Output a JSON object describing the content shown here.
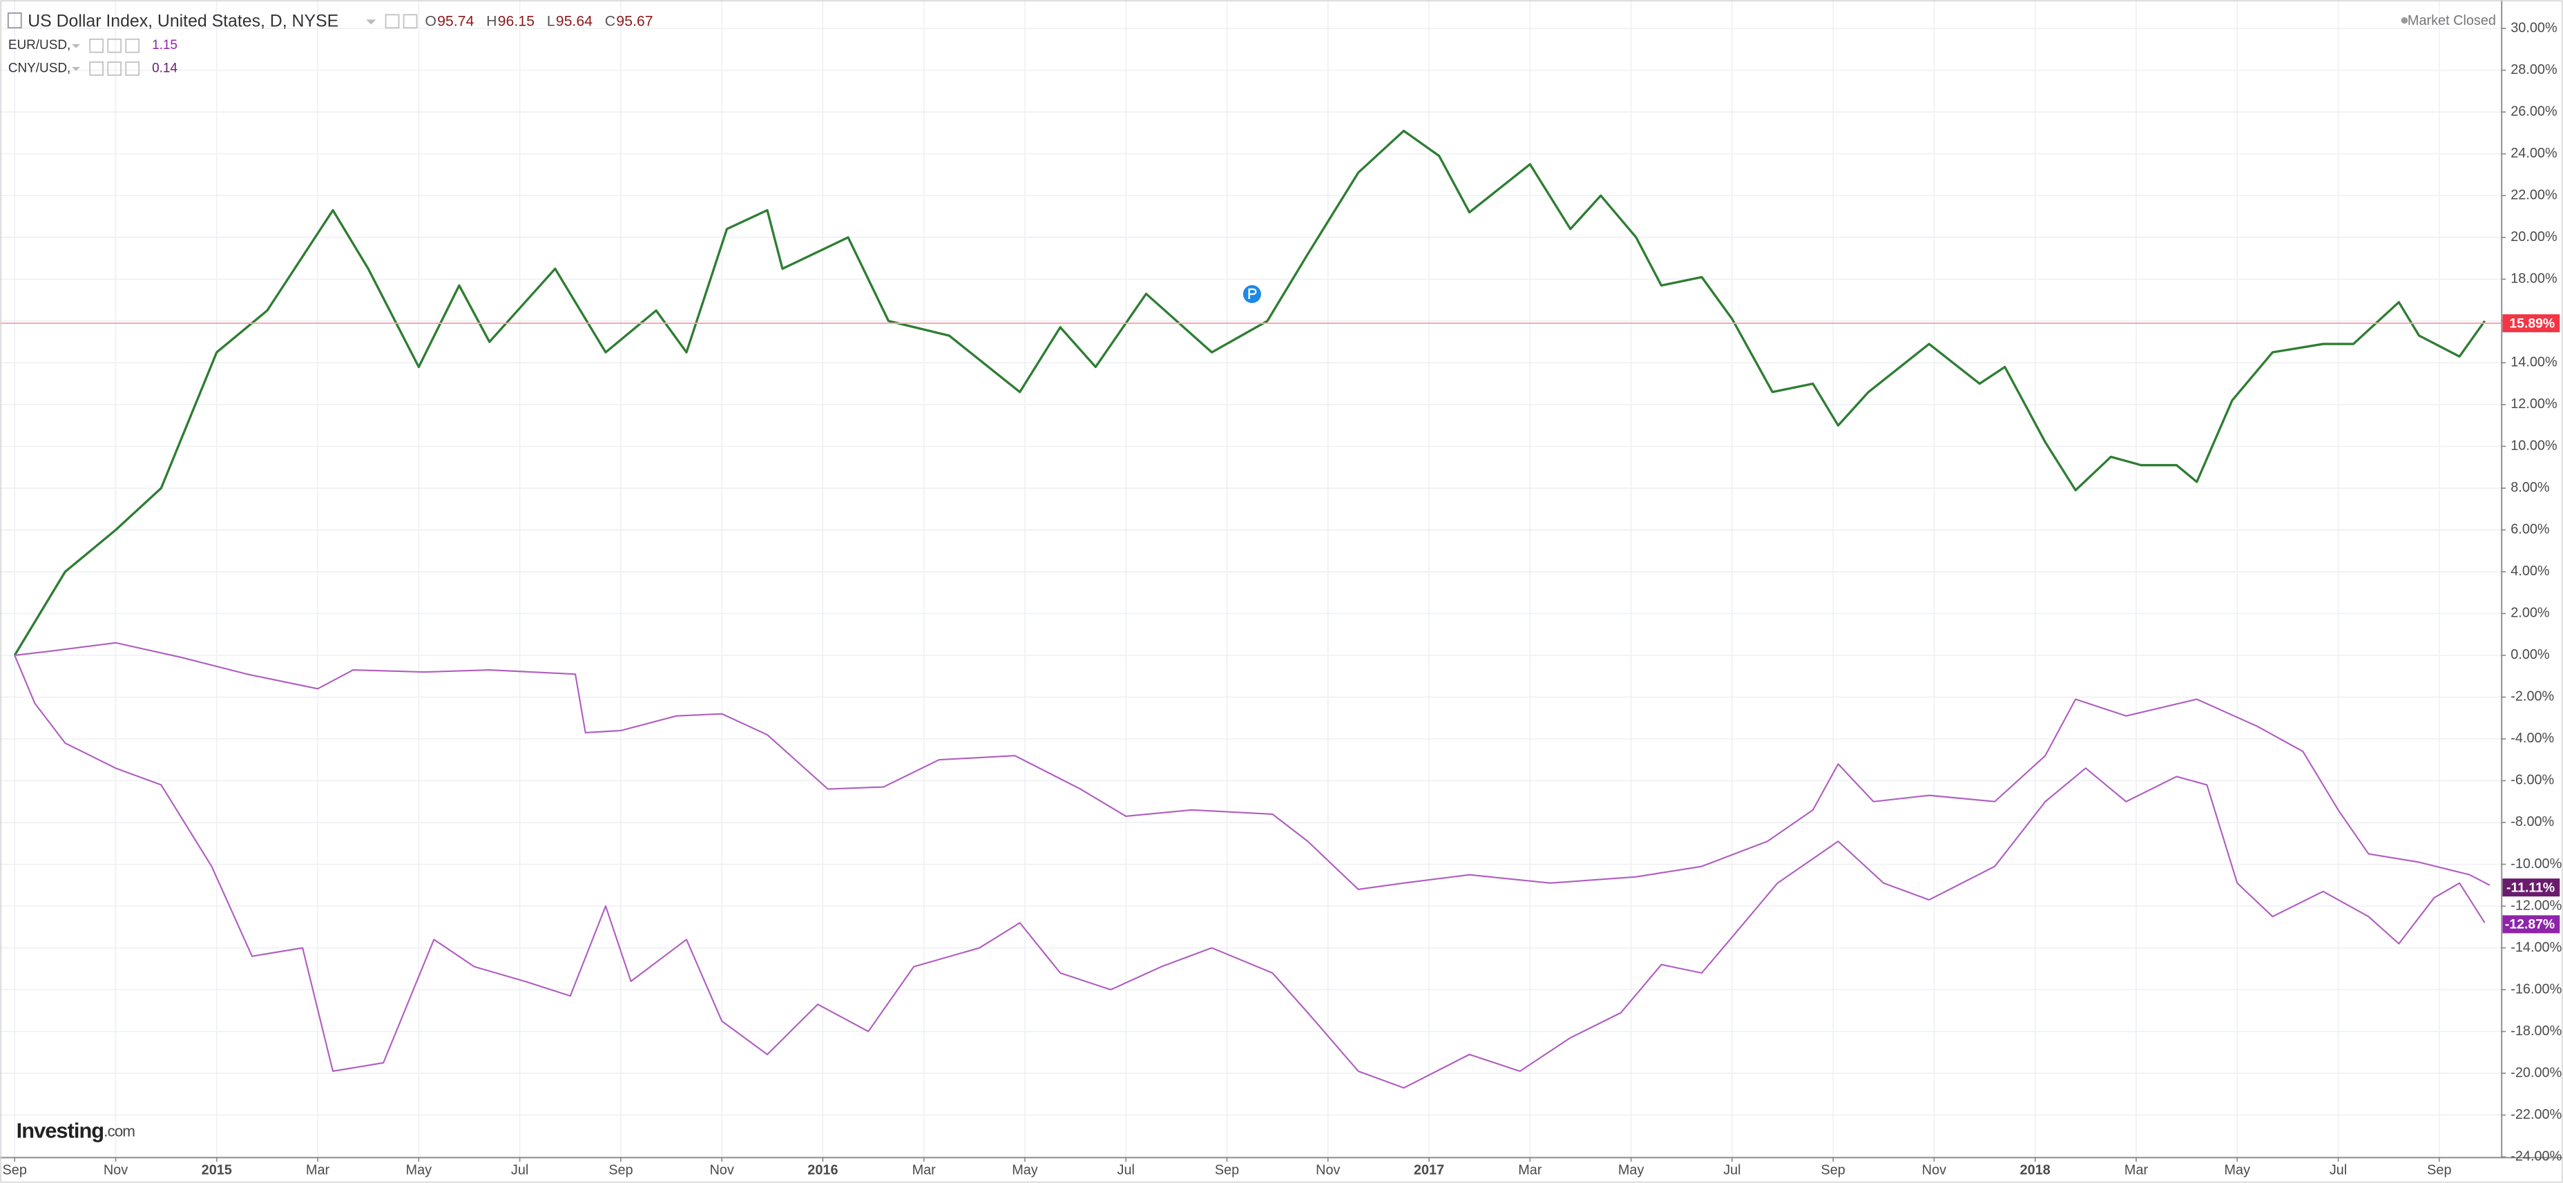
{
  "header": {
    "title": "US Dollar Index, United States, D, NYSE",
    "ohlc": [
      {
        "key": "O",
        "value": 95.74
      },
      {
        "key": "H",
        "value": 96.15
      },
      {
        "key": "L",
        "value": 95.64
      },
      {
        "key": "C",
        "value": 95.67
      }
    ],
    "status": "Market Closed"
  },
  "logo": {
    "name": "Investing",
    "suffix": ".com"
  },
  "chart_data": {
    "type": "line",
    "xlim": [
      -0.29,
      49.22
    ],
    "xticks": [
      {
        "value": 0,
        "label": "Sep"
      },
      {
        "value": 2,
        "label": "Nov"
      },
      {
        "value": 4,
        "label": "2015"
      },
      {
        "value": 6,
        "label": "Mar"
      },
      {
        "value": 8,
        "label": "May"
      },
      {
        "value": 10,
        "label": "Jul"
      },
      {
        "value": 12,
        "label": "Sep"
      },
      {
        "value": 14,
        "label": "Nov"
      },
      {
        "value": 16,
        "label": "2016"
      },
      {
        "value": 18,
        "label": "Mar"
      },
      {
        "value": 20,
        "label": "May"
      },
      {
        "value": 22,
        "label": "Jul"
      },
      {
        "value": 24,
        "label": "Sep"
      },
      {
        "value": 26,
        "label": "Nov"
      },
      {
        "value": 28,
        "label": "2017"
      },
      {
        "value": 30,
        "label": "Mar"
      },
      {
        "value": 32,
        "label": "May"
      },
      {
        "value": 34,
        "label": "Jul"
      },
      {
        "value": 36,
        "label": "Sep"
      },
      {
        "value": 38,
        "label": "Nov"
      },
      {
        "value": 40,
        "label": "2018"
      },
      {
        "value": 42,
        "label": "Mar"
      },
      {
        "value": 44,
        "label": "May"
      },
      {
        "value": 46,
        "label": "Jul"
      },
      {
        "value": 48,
        "label": "Sep"
      }
    ],
    "ylim": [
      -24,
      31.36
    ],
    "yticks": [
      {
        "value": -24,
        "label": "-24.00%"
      },
      {
        "value": -22,
        "label": "-22.00%"
      },
      {
        "value": -20,
        "label": "-20.00%"
      },
      {
        "value": -18,
        "label": "-18.00%"
      },
      {
        "value": -16,
        "label": "-16.00%"
      },
      {
        "value": -14,
        "label": "-14.00%"
      },
      {
        "value": -12,
        "label": "-12.00%"
      },
      {
        "value": -10,
        "label": "-10.00%"
      },
      {
        "value": -8,
        "label": "-8.00%"
      },
      {
        "value": -6,
        "label": "-6.00%"
      },
      {
        "value": -4,
        "label": "-4.00%"
      },
      {
        "value": -2,
        "label": "-2.00%"
      },
      {
        "value": 0,
        "label": "0.00%"
      },
      {
        "value": 2,
        "label": "2.00%"
      },
      {
        "value": 4,
        "label": "4.00%"
      },
      {
        "value": 6,
        "label": "6.00%"
      },
      {
        "value": 8,
        "label": "8.00%"
      },
      {
        "value": 10,
        "label": "10.00%"
      },
      {
        "value": 12,
        "label": "12.00%"
      },
      {
        "value": 14,
        "label": "14.00%"
      },
      {
        "value": 16,
        "label": "16.00%"
      },
      {
        "value": 18,
        "label": "18.00%"
      },
      {
        "value": 20,
        "label": "20.00%"
      },
      {
        "value": 22,
        "label": "22.00%"
      },
      {
        "value": 24,
        "label": "24.00%"
      },
      {
        "value": 26,
        "label": "26.00%"
      },
      {
        "value": 28,
        "label": "28.00%"
      },
      {
        "value": 30,
        "label": "30.00%"
      }
    ],
    "grid": true,
    "series": [
      {
        "color": "#2e7d32",
        "box_color": "#f23645",
        "price_line": true,
        "last_value": 15.89,
        "last_label": "15.89%",
        "x": [
          0,
          0.5,
          1,
          2,
          2.9,
          4,
          5,
          6.3,
          7,
          8,
          8.8,
          9.4,
          10.7,
          11.7,
          12.7,
          13.3,
          14.1,
          14.9,
          15.2,
          16.5,
          17.3,
          18.5,
          19.9,
          20.7,
          21.4,
          22.4,
          23.7,
          24.8,
          25.6,
          26.6,
          27.5,
          28.2,
          28.8,
          30,
          30.8,
          31.4,
          32.1,
          32.6,
          33.4,
          34,
          34.8,
          35.6,
          36.1,
          36.7,
          37.9,
          38.9,
          39.4,
          40.2,
          40.8,
          41.5,
          42.1,
          42.8,
          43.2,
          43.9,
          44.7,
          45.7,
          46.3,
          47.2,
          47.6,
          48.4,
          48.9
        ],
        "values": [
          0,
          2,
          4,
          6,
          8,
          14.5,
          16.5,
          21.3,
          18.5,
          13.8,
          17.7,
          15,
          18.5,
          14.5,
          16.5,
          14.5,
          20.4,
          21.3,
          18.5,
          20,
          16,
          15.3,
          12.6,
          15.7,
          13.8,
          17.3,
          14.5,
          16,
          19.2,
          23.1,
          25.1,
          23.9,
          21.2,
          23.5,
          20.4,
          22,
          20,
          17.7,
          18.1,
          16.1,
          12.6,
          13,
          11,
          12.6,
          14.9,
          13,
          13.8,
          10.2,
          7.9,
          9.5,
          9.1,
          9.1,
          8.3,
          12.2,
          14.5,
          14.9,
          14.9,
          16.9,
          15.3,
          14.3,
          16
        ]
      },
      {
        "name": "EUR/USD,",
        "legend_value": 1.15,
        "color": "#b05dc1",
        "box_color": "#8e24aa",
        "last_value": -12.87,
        "last_label": "-12.87%",
        "x": [
          0,
          0.4,
          1,
          2,
          2.9,
          3.9,
          4.7,
          5.7,
          6.3,
          7.3,
          8.3,
          9.1,
          10.1,
          11,
          11.7,
          12.2,
          13.3,
          14,
          14.9,
          15.9,
          16.9,
          17.8,
          19.1,
          19.9,
          20.7,
          21.7,
          22.7,
          23.7,
          24.9,
          25.6,
          26.6,
          27.5,
          28.8,
          29.8,
          30.8,
          31.8,
          32.6,
          33.4,
          34.1,
          34.9,
          36.1,
          37,
          37.9,
          39.2,
          40.2,
          41,
          41.8,
          42.8,
          43.4,
          44,
          44.7,
          45.7,
          46.6,
          47.2,
          47.9,
          48.4,
          48.9
        ],
        "values": [
          0,
          -2.3,
          -4.2,
          -5.4,
          -6.2,
          -10.1,
          -14.4,
          -14,
          -19.9,
          -19.5,
          -13.6,
          -14.9,
          -15.6,
          -16.3,
          -12,
          -15.6,
          -13.6,
          -17.5,
          -19.1,
          -16.7,
          -18,
          -14.9,
          -14,
          -12.8,
          -15.2,
          -16,
          -14.9,
          -14,
          -15.2,
          -17.1,
          -19.9,
          -20.7,
          -19.1,
          -19.9,
          -18.3,
          -17.1,
          -14.8,
          -15.2,
          -13.2,
          -10.9,
          -8.9,
          -10.9,
          -11.7,
          -10.1,
          -7,
          -5.4,
          -7,
          -5.8,
          -6.2,
          -10.9,
          -12.5,
          -11.3,
          -12.5,
          -13.8,
          -11.6,
          -10.9,
          -12.8
        ]
      },
      {
        "name": "CNY/USD,",
        "legend_value": 0.14,
        "color": "#b05dc1",
        "box_color": "#6a1b6e",
        "last_value": -11.11,
        "last_label": "-11.11%",
        "x": [
          0,
          0.7,
          2,
          3.3,
          4.6,
          6,
          6.7,
          8.1,
          9.4,
          11.1,
          11.3,
          12,
          13.1,
          14,
          14.9,
          16.1,
          17.2,
          18.3,
          19.8,
          21.1,
          22,
          23.3,
          24.9,
          25.6,
          26.6,
          27.5,
          28.8,
          30.4,
          32.1,
          33.4,
          34.7,
          35.6,
          36.1,
          36.8,
          37.9,
          39.2,
          40.2,
          40.8,
          41.8,
          43.2,
          44.4,
          45.3,
          46,
          46.6,
          47.6,
          48.6,
          49
        ],
        "values": [
          0,
          0.2,
          0.6,
          -0.1,
          -0.9,
          -1.6,
          -0.7,
          -0.8,
          -0.7,
          -0.9,
          -3.7,
          -3.6,
          -2.9,
          -2.8,
          -3.8,
          -6.4,
          -6.3,
          -5,
          -4.8,
          -6.4,
          -7.7,
          -7.4,
          -7.6,
          -8.9,
          -11.2,
          -10.9,
          -10.5,
          -10.9,
          -10.6,
          -10.1,
          -8.9,
          -7.4,
          -5.2,
          -7,
          -6.7,
          -7,
          -4.8,
          -2.1,
          -2.9,
          -2.1,
          -3.4,
          -4.6,
          -7.4,
          -9.5,
          -9.9,
          -10.5,
          -11
        ]
      }
    ]
  }
}
